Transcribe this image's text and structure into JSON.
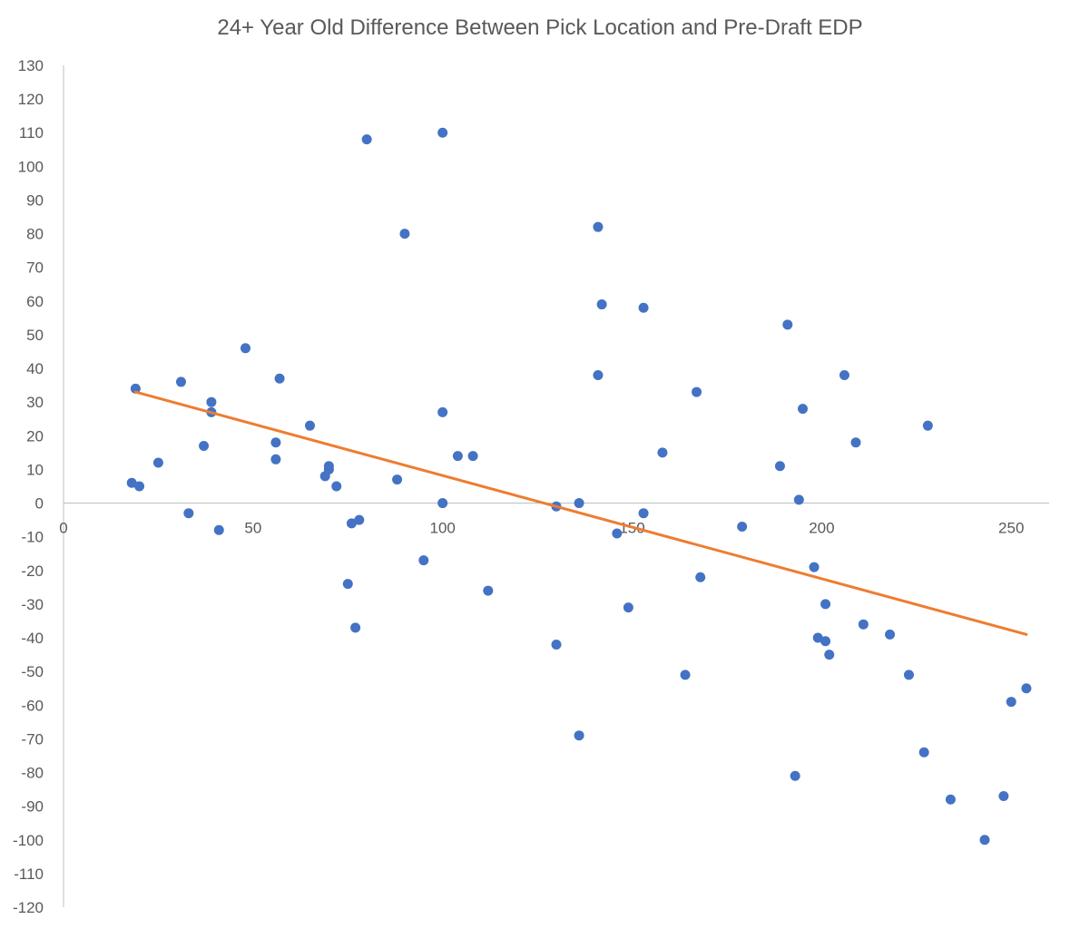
{
  "chart_data": {
    "type": "scatter",
    "title": "24+ Year Old Difference Between Pick Location and Pre-Draft EDP",
    "xlabel": "",
    "ylabel": "",
    "xlim": [
      0,
      260
    ],
    "ylim": [
      -120,
      130
    ],
    "x_ticks": [
      0,
      50,
      100,
      150,
      200,
      250
    ],
    "y_ticks": [
      130,
      120,
      110,
      100,
      90,
      80,
      70,
      60,
      50,
      40,
      30,
      20,
      10,
      0,
      -10,
      -20,
      -30,
      -40,
      -50,
      -60,
      -70,
      -80,
      -90,
      -100,
      -110,
      -120
    ],
    "grid": false,
    "legend": "none",
    "colors": {
      "points": "#4472C4",
      "trendline": "#ED7D31",
      "axis": "#BFBFBF",
      "text": "#595959"
    },
    "series": [
      {
        "points": [
          [
            18,
            6
          ],
          [
            19,
            34
          ],
          [
            20,
            5
          ],
          [
            25,
            12
          ],
          [
            31,
            36
          ],
          [
            33,
            -3
          ],
          [
            37,
            17
          ],
          [
            39,
            30
          ],
          [
            39,
            27
          ],
          [
            41,
            -8
          ],
          [
            48,
            46
          ],
          [
            56,
            18
          ],
          [
            56,
            13
          ],
          [
            57,
            37
          ],
          [
            65,
            23
          ],
          [
            69,
            8
          ],
          [
            70,
            11
          ],
          [
            70,
            10
          ],
          [
            72,
            5
          ],
          [
            75,
            -24
          ],
          [
            76,
            -6
          ],
          [
            77,
            -37
          ],
          [
            78,
            -5
          ],
          [
            80,
            108
          ],
          [
            88,
            7
          ],
          [
            90,
            80
          ],
          [
            95,
            -17
          ],
          [
            100,
            110
          ],
          [
            100,
            27
          ],
          [
            100,
            0
          ],
          [
            104,
            14
          ],
          [
            108,
            14
          ],
          [
            112,
            -26
          ],
          [
            130,
            -1
          ],
          [
            130,
            -42
          ],
          [
            136,
            0
          ],
          [
            136,
            -69
          ],
          [
            141,
            82
          ],
          [
            141,
            38
          ],
          [
            142,
            59
          ],
          [
            146,
            -9
          ],
          [
            149,
            -31
          ],
          [
            153,
            58
          ],
          [
            153,
            -3
          ],
          [
            158,
            15
          ],
          [
            164,
            -51
          ],
          [
            167,
            33
          ],
          [
            168,
            -22
          ],
          [
            179,
            -7
          ],
          [
            189,
            11
          ],
          [
            191,
            53
          ],
          [
            193,
            -81
          ],
          [
            194,
            1
          ],
          [
            195,
            28
          ],
          [
            198,
            -19
          ],
          [
            199,
            -40
          ],
          [
            201,
            -30
          ],
          [
            201,
            -41
          ],
          [
            202,
            -45
          ],
          [
            206,
            38
          ],
          [
            209,
            18
          ],
          [
            211,
            -36
          ],
          [
            218,
            -39
          ],
          [
            223,
            -51
          ],
          [
            227,
            -74
          ],
          [
            228,
            23
          ],
          [
            234,
            -88
          ],
          [
            243,
            -100
          ],
          [
            248,
            -87
          ],
          [
            250,
            -59
          ],
          [
            254,
            -55
          ]
        ]
      }
    ],
    "trendline": {
      "type": "linear",
      "x": [
        19,
        254
      ],
      "y": [
        33,
        -39
      ]
    }
  }
}
